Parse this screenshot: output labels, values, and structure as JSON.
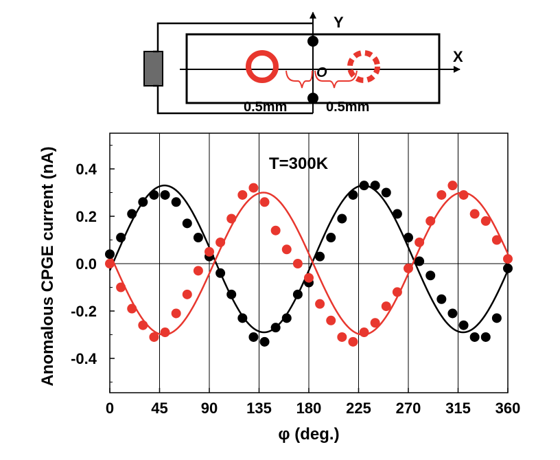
{
  "colors": {
    "black": "#000000",
    "red": "#e8372e",
    "electrode": "#6b6b6b"
  },
  "schematic": {
    "y_axis_label": "Y",
    "x_axis_label": "X",
    "origin_label": "O",
    "left_offset_label": "0.5mm",
    "right_offset_label": "0.5mm"
  },
  "chart_data": {
    "type": "scatter",
    "annotation": "T=300K",
    "xlabel": "φ (deg.)",
    "ylabel": "Anomalous CPGE current (nA)",
    "xlim": [
      0,
      360
    ],
    "ylim": [
      -0.55,
      0.55
    ],
    "xticks": [
      "0",
      "45",
      "90",
      "135",
      "180",
      "225",
      "270",
      "315",
      "360"
    ],
    "yticks": [
      "0.4",
      "0.2",
      "0.0",
      "-0.2",
      "-0.4"
    ],
    "grid": "vertical",
    "zero_line": true,
    "series": [
      {
        "color": "black",
        "points_x": [
          0,
          10,
          20,
          30,
          40,
          50,
          60,
          70,
          80,
          90,
          100,
          110,
          120,
          130,
          140,
          150,
          160,
          170,
          180,
          190,
          200,
          210,
          220,
          230,
          240,
          250,
          260,
          270,
          280,
          290,
          300,
          310,
          320,
          330,
          340,
          350,
          360
        ],
        "points_y": [
          0.04,
          0.11,
          0.21,
          0.26,
          0.29,
          0.29,
          0.26,
          0.17,
          0.11,
          0.03,
          -0.04,
          -0.13,
          -0.23,
          -0.31,
          -0.33,
          -0.27,
          -0.23,
          -0.13,
          -0.08,
          0.03,
          0.11,
          0.19,
          0.29,
          0.33,
          0.33,
          0.3,
          0.21,
          0.11,
          0.01,
          -0.05,
          -0.15,
          -0.21,
          -0.26,
          -0.31,
          -0.31,
          -0.23,
          -0.02
        ],
        "fit": {
          "amplitude": 0.31,
          "phase_deg": 4.5,
          "offset": 0.02,
          "period_deg": 180
        }
      },
      {
        "color": "red",
        "points_x": [
          0,
          10,
          20,
          30,
          40,
          50,
          60,
          70,
          80,
          90,
          100,
          110,
          120,
          130,
          140,
          150,
          160,
          170,
          180,
          190,
          200,
          210,
          220,
          230,
          240,
          250,
          260,
          270,
          280,
          290,
          300,
          310,
          320,
          330,
          340,
          350,
          360
        ],
        "points_y": [
          0.0,
          -0.1,
          -0.19,
          -0.26,
          -0.31,
          -0.29,
          -0.21,
          -0.13,
          -0.03,
          0.05,
          0.09,
          0.19,
          0.29,
          0.32,
          0.26,
          0.14,
          0.06,
          0.0,
          -0.06,
          -0.17,
          -0.24,
          -0.31,
          -0.33,
          -0.29,
          -0.25,
          -0.18,
          -0.12,
          -0.02,
          0.09,
          0.18,
          0.29,
          0.33,
          0.29,
          0.21,
          0.18,
          0.1,
          0.02
        ],
        "fit": {
          "amplitude": -0.3,
          "phase_deg": 4.0,
          "offset": 0.0,
          "period_deg": 180
        }
      }
    ]
  }
}
